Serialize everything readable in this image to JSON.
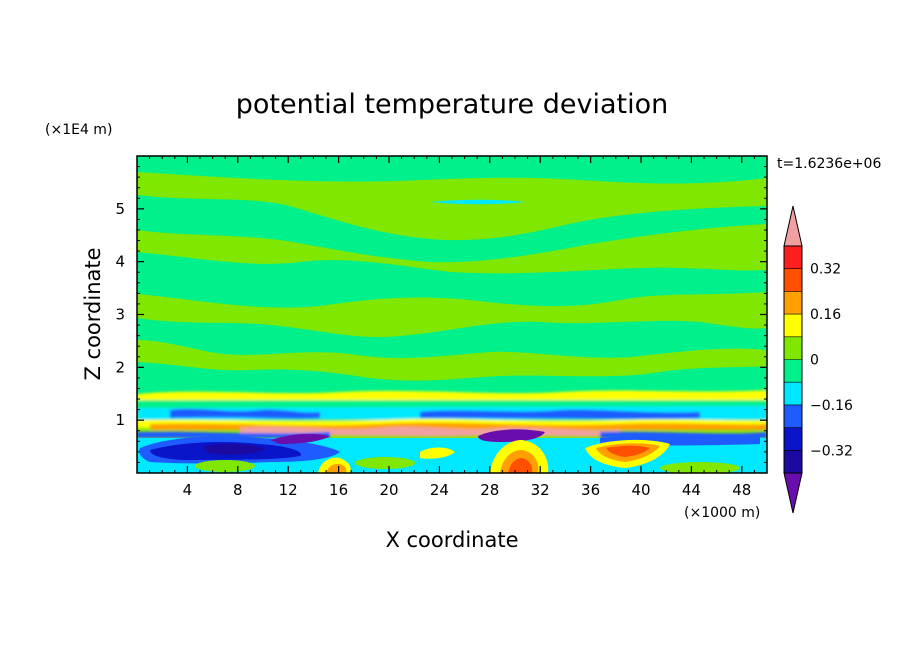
{
  "chart_data": {
    "type": "heatmap",
    "title": "potential temperature deviation",
    "time_label": "t=1.6236e+06",
    "xlabel": "X coordinate",
    "ylabel": "Z coordinate",
    "x_unit_label": "(×1000 m)",
    "y_unit_label": "(×1E4 m)",
    "xlim": [
      0,
      50
    ],
    "ylim": [
      0,
      6
    ],
    "x_ticks": [
      4,
      8,
      12,
      16,
      20,
      24,
      28,
      32,
      36,
      40,
      44,
      48
    ],
    "x_tick_labels": [
      "4",
      "8",
      "12",
      "16",
      "20",
      "24",
      "28",
      "32",
      "36",
      "40",
      "44",
      "48"
    ],
    "y_ticks": [
      1,
      2,
      3,
      4,
      5
    ],
    "y_tick_labels": [
      "1",
      "2",
      "3",
      "4",
      "5"
    ],
    "colorbar": {
      "levels": [
        -0.4,
        -0.32,
        -0.24,
        -0.16,
        -0.08,
        0,
        0.08,
        0.16,
        0.24,
        0.32,
        0.4
      ],
      "tick_values": [
        -0.32,
        -0.16,
        0,
        0.16,
        0.32
      ],
      "tick_labels": [
        "−0.32",
        "−0.16",
        "0",
        "0.16",
        "0.32"
      ],
      "colors": [
        "#6a0dad",
        "#1a0aa0",
        "#0a14c8",
        "#1e5cff",
        "#00e8ff",
        "#00f08c",
        "#80e800",
        "#ffff00",
        "#ffa000",
        "#ff5000",
        "#ff1e1e",
        "#f0a0a0"
      ],
      "extend": "both"
    },
    "features": [
      {
        "kind": "background",
        "range": "-0.08 to 0 and 0 to 0.08 banded layers",
        "z_range": [
          1.2,
          6
        ]
      },
      {
        "kind": "band",
        "x_range": [
          0,
          50
        ],
        "z_range": [
          0.6,
          1.3
        ],
        "range": "-0.32 to 0.4 mixed"
      },
      {
        "kind": "cold_pool",
        "x_range": [
          1,
          16
        ],
        "z_range": [
          0.2,
          0.7
        ],
        "min_value": -0.4
      },
      {
        "kind": "warm_anomaly",
        "x_range": [
          28,
          33
        ],
        "z_range": [
          0,
          0.4
        ],
        "max_value": 0.32
      },
      {
        "kind": "warm_anomaly",
        "x_range": [
          35,
          45
        ],
        "z_range": [
          0.1,
          0.6
        ],
        "max_value": 0.32
      },
      {
        "kind": "cold_anomaly",
        "x_range": [
          25,
          31
        ],
        "z_range": [
          0.6,
          0.8
        ],
        "min_value": -0.4
      }
    ]
  }
}
